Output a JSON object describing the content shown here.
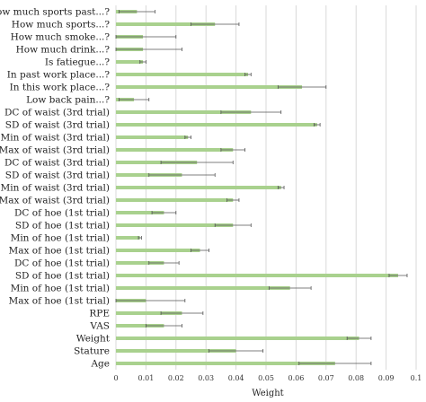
{
  "chart_data": {
    "type": "bar",
    "orientation": "horizontal",
    "title": "",
    "xlabel": "Weight",
    "ylabel": "",
    "xlim": [
      0,
      0.1
    ],
    "x_ticks": [
      "0",
      "0.01",
      "0.02",
      "0.03",
      "0.04",
      "0.05",
      "0.06",
      "0.07",
      "0.08",
      "0.09",
      "0.1"
    ],
    "x_tick_values": [
      0,
      0.01,
      0.02,
      0.03,
      0.04,
      0.05,
      0.06,
      0.07,
      0.08,
      0.09,
      0.1
    ],
    "grid": true,
    "bar_color": "#a9d18e",
    "error_color": "#555555",
    "categories": [
      "How much sports past...?",
      "How much sports...?",
      "How much smoke...?",
      "How much drink...?",
      "Is fatiegue...?",
      "In past work place...?",
      "In this work place...?",
      "Low back pain...?",
      "DC of waist (3rd trial)",
      "SD of waist (3rd trial)",
      "Min of waist (3rd trial)",
      "Max of waist (3rd trial)",
      "DC of waist (3rd trial)",
      "SD of waist (3rd trial)",
      "Min of waist (3rd trial)",
      "Max of waist (3rd trial)",
      "DC of hoe (1st trial)",
      "SD of hoe (1st trial)",
      "Min of hoe (1st trial)",
      "Max of hoe (1st trial)",
      "DC of hoe (1st trial)",
      "SD of hoe (1st trial)",
      "Min of hoe (1st trial)",
      "Max of hoe (1st trial)",
      "RPE",
      "VAS",
      "Weight",
      "Stature",
      "Age"
    ],
    "values": [
      0.007,
      0.033,
      0.009,
      0.009,
      0.009,
      0.044,
      0.062,
      0.006,
      0.045,
      0.067,
      0.024,
      0.039,
      0.027,
      0.022,
      0.055,
      0.039,
      0.016,
      0.039,
      0.008,
      0.028,
      0.016,
      0.094,
      0.058,
      0.01,
      0.022,
      0.016,
      0.081,
      0.04,
      0.073
    ],
    "errors": [
      0.006,
      0.008,
      0.011,
      0.013,
      0.001,
      0.001,
      0.008,
      0.005,
      0.01,
      0.001,
      0.001,
      0.004,
      0.012,
      0.011,
      0.001,
      0.002,
      0.004,
      0.006,
      0.0005,
      0.003,
      0.005,
      0.003,
      0.007,
      0.013,
      0.007,
      0.006,
      0.004,
      0.009,
      0.012
    ]
  }
}
